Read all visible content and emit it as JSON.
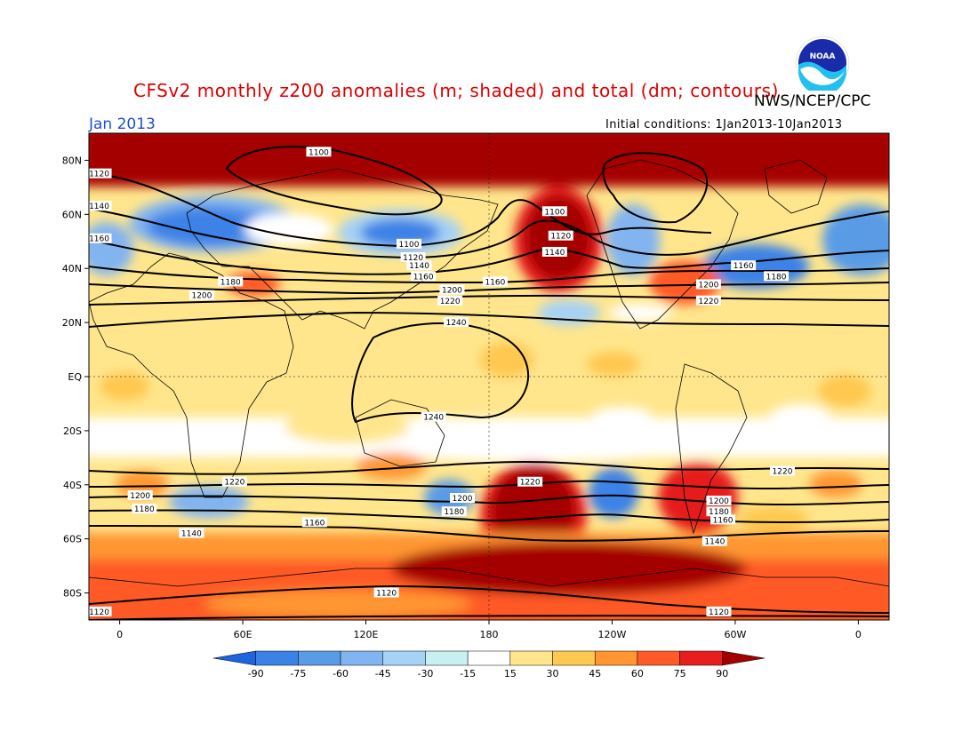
{
  "title": "CFSv2 monthly z200 anomalies (m; shaded) and total (dm; contours)",
  "agency": "NWS/NCEP/CPC",
  "logo_text": "NOAA",
  "month": "Jan 2013",
  "initial_conditions": "Initial conditions: 1Jan2013-10Jan2013",
  "colors": {
    "title": "#dd0000",
    "month": "#2050d0"
  },
  "lat_labels": [
    "80N",
    "60N",
    "40N",
    "20N",
    "EQ",
    "20S",
    "40S",
    "60S",
    "80S"
  ],
  "lat_values": [
    80,
    60,
    40,
    20,
    0,
    -20,
    -40,
    -60,
    -80
  ],
  "lon_labels": [
    "0",
    "60E",
    "120E",
    "180",
    "120W",
    "60W",
    "0"
  ],
  "lon_values": [
    0,
    60,
    120,
    180,
    240,
    300,
    360
  ],
  "colorbar": {
    "ticks": [
      "-90",
      "-75",
      "-60",
      "-45",
      "-30",
      "-15",
      "15",
      "30",
      "45",
      "60",
      "75",
      "90"
    ],
    "colors": [
      "#1e64dc",
      "#3c82e6",
      "#5a9be6",
      "#82b4f0",
      "#a5d2f5",
      "#c8f0f0",
      "#ffffff",
      "#ffe68c",
      "#ffc850",
      "#ff9632",
      "#ff5a28",
      "#e61e1e",
      "#a50000"
    ]
  },
  "contours": [
    {
      "label": "1100",
      "placements": [
        {
          "lon": 97,
          "lat": 83
        },
        {
          "lon": 212,
          "lat": 61
        },
        {
          "lon": 141,
          "lat": 49
        }
      ]
    },
    {
      "label": "1120",
      "placements": [
        {
          "lon": -10,
          "lat": 75
        },
        {
          "lon": 215,
          "lat": 52
        },
        {
          "lon": 143,
          "lat": 44
        },
        {
          "lon": 130,
          "lat": -80
        },
        {
          "lon": -10,
          "lat": -87
        },
        {
          "lon": 292,
          "lat": -87
        }
      ]
    },
    {
      "label": "1140",
      "placements": [
        {
          "lon": -10,
          "lat": 63
        },
        {
          "lon": 212,
          "lat": 46
        },
        {
          "lon": 146,
          "lat": 41
        },
        {
          "lon": 35,
          "lat": -58
        },
        {
          "lon": 290,
          "lat": -61
        }
      ]
    },
    {
      "label": "1160",
      "placements": [
        {
          "lon": -10,
          "lat": 51
        },
        {
          "lon": 148,
          "lat": 37
        },
        {
          "lon": 183,
          "lat": 35
        },
        {
          "lon": 304,
          "lat": 41
        },
        {
          "lon": 95,
          "lat": -54
        },
        {
          "lon": 294,
          "lat": -53
        }
      ]
    },
    {
      "label": "1180",
      "placements": [
        {
          "lon": 54,
          "lat": 35
        },
        {
          "lon": 320,
          "lat": 37
        },
        {
          "lon": 12,
          "lat": -49
        },
        {
          "lon": 163,
          "lat": -50
        },
        {
          "lon": 292,
          "lat": -50
        }
      ]
    },
    {
      "label": "1200",
      "placements": [
        {
          "lon": 40,
          "lat": 30
        },
        {
          "lon": 162,
          "lat": 32
        },
        {
          "lon": 287,
          "lat": 34
        },
        {
          "lon": 10,
          "lat": -44
        },
        {
          "lon": 167,
          "lat": -45
        },
        {
          "lon": 292,
          "lat": -46
        }
      ]
    },
    {
      "label": "1220",
      "placements": [
        {
          "lon": 161,
          "lat": 28
        },
        {
          "lon": 287,
          "lat": 28
        },
        {
          "lon": 56,
          "lat": -39
        },
        {
          "lon": 200,
          "lat": -39
        },
        {
          "lon": 323,
          "lat": -35
        }
      ]
    },
    {
      "label": "1240",
      "placements": [
        {
          "lon": 164,
          "lat": 20
        },
        {
          "lon": 153,
          "lat": -15
        }
      ]
    }
  ]
}
